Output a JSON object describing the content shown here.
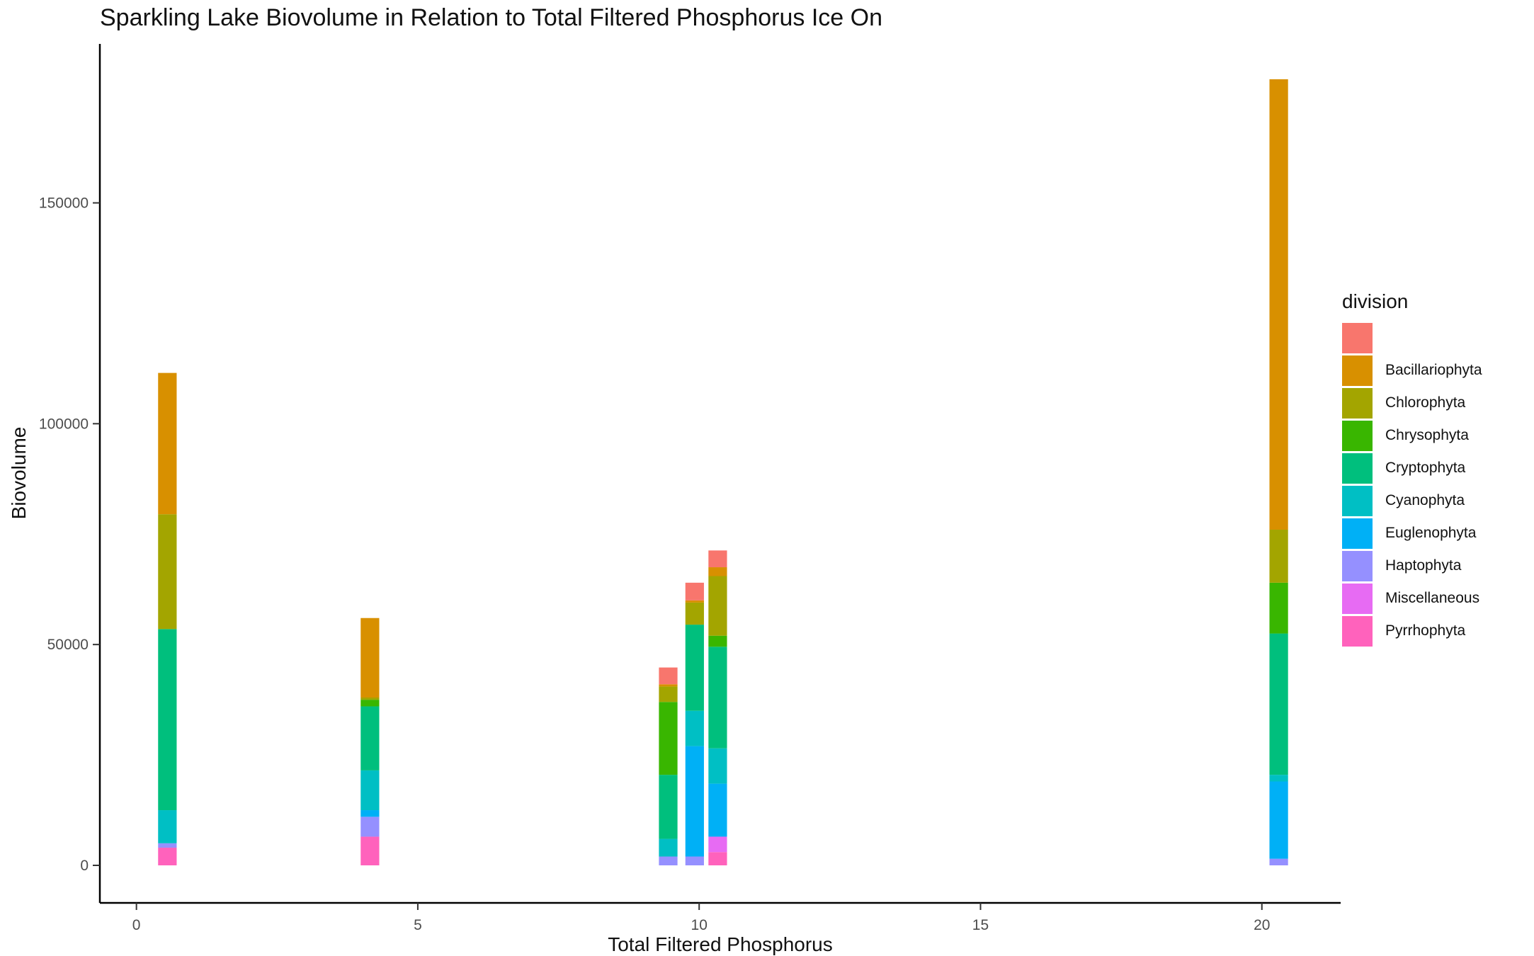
{
  "chart_data": {
    "type": "bar",
    "stacked": true,
    "title": "Sparkling Lake Biovolume in Relation to Total Filtered Phosphorus Ice On",
    "xlabel": "Total Filtered Phosphorus",
    "ylabel": "Biovolume",
    "xlim": [
      -0.65,
      21.4
    ],
    "ylim": [
      -8500,
      186000
    ],
    "x_ticks": [
      0,
      5,
      10,
      15,
      20
    ],
    "y_ticks": [
      0,
      50000,
      100000,
      150000
    ],
    "y_tick_labels": [
      "0",
      "50000",
      "100000",
      "150000"
    ],
    "bar_width": 0.33,
    "grid": false,
    "legend_position": "right",
    "legend_title": "division",
    "divisions": [
      {
        "name": "",
        "color": "#F8766D"
      },
      {
        "name": "Bacillariophyta",
        "color": "#D89000"
      },
      {
        "name": "Chlorophyta",
        "color": "#A3A500"
      },
      {
        "name": "Chrysophyta",
        "color": "#39B600"
      },
      {
        "name": "Cryptophyta",
        "color": "#00BF7D"
      },
      {
        "name": "Cyanophyta",
        "color": "#00BFC4"
      },
      {
        "name": "Euglenophyta",
        "color": "#00B0F6"
      },
      {
        "name": "Haptophyta",
        "color": "#9590FF"
      },
      {
        "name": "Miscellaneous",
        "color": "#E76BF3"
      },
      {
        "name": "Pyrrhophyta",
        "color": "#FF62BC"
      }
    ],
    "bars": [
      {
        "x": 0.55,
        "segments": [
          {
            "division": "Pyrrhophyta",
            "value": 4000
          },
          {
            "division": "Haptophyta",
            "value": 1000
          },
          {
            "division": "Cyanophyta",
            "value": 7500
          },
          {
            "division": "Cryptophyta",
            "value": 41000
          },
          {
            "division": "Chlorophyta",
            "value": 26000
          },
          {
            "division": "Bacillariophyta",
            "value": 32000
          }
        ]
      },
      {
        "x": 4.15,
        "segments": [
          {
            "division": "Pyrrhophyta",
            "value": 6500
          },
          {
            "division": "Haptophyta",
            "value": 4500
          },
          {
            "division": "Euglenophyta",
            "value": 1500
          },
          {
            "division": "Cyanophyta",
            "value": 9000
          },
          {
            "division": "Cryptophyta",
            "value": 14500
          },
          {
            "division": "Chrysophyta",
            "value": 1500
          },
          {
            "division": "Chlorophyta",
            "value": 500
          },
          {
            "division": "Bacillariophyta",
            "value": 18000
          }
        ]
      },
      {
        "x": 9.45,
        "segments": [
          {
            "division": "Haptophyta",
            "value": 2000
          },
          {
            "division": "Cyanophyta",
            "value": 4000
          },
          {
            "division": "Cryptophyta",
            "value": 14500
          },
          {
            "division": "Chrysophyta",
            "value": 16500
          },
          {
            "division": "Chlorophyta",
            "value": 3500
          },
          {
            "division": "Bacillariophyta",
            "value": 500
          },
          {
            "division": "",
            "value": 3800
          }
        ]
      },
      {
        "x": 9.92,
        "segments": [
          {
            "division": "Haptophyta",
            "value": 2000
          },
          {
            "division": "Euglenophyta",
            "value": 25000
          },
          {
            "division": "Cyanophyta",
            "value": 8000
          },
          {
            "division": "Cryptophyta",
            "value": 19500
          },
          {
            "division": "Chlorophyta",
            "value": 5000
          },
          {
            "division": "Bacillariophyta",
            "value": 500
          },
          {
            "division": "",
            "value": 4000
          }
        ]
      },
      {
        "x": 10.33,
        "segments": [
          {
            "division": "Pyrrhophyta",
            "value": 3000
          },
          {
            "division": "Miscellaneous",
            "value": 3500
          },
          {
            "division": "Euglenophyta",
            "value": 12000
          },
          {
            "division": "Cyanophyta",
            "value": 8000
          },
          {
            "division": "Cryptophyta",
            "value": 23000
          },
          {
            "division": "Chrysophyta",
            "value": 2500
          },
          {
            "division": "Chlorophyta",
            "value": 13500
          },
          {
            "division": "Bacillariophyta",
            "value": 2000
          },
          {
            "division": "",
            "value": 3800
          }
        ]
      },
      {
        "x": 20.3,
        "segments": [
          {
            "division": "Haptophyta",
            "value": 1500
          },
          {
            "division": "Euglenophyta",
            "value": 17500
          },
          {
            "division": "Cyanophyta",
            "value": 1500
          },
          {
            "division": "Cryptophyta",
            "value": 32000
          },
          {
            "division": "Chrysophyta",
            "value": 11500
          },
          {
            "division": "Chlorophyta",
            "value": 12000
          },
          {
            "division": "Bacillariophyta",
            "value": 102000
          }
        ]
      }
    ]
  }
}
